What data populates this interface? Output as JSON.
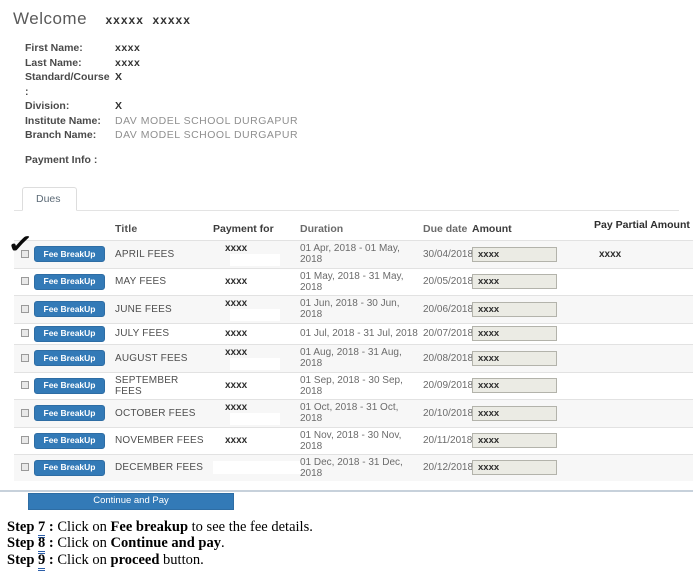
{
  "header": {
    "welcome_label": "Welcome",
    "student_name": "xxxxx  xxxxx"
  },
  "profile": {
    "fields": [
      {
        "label": "First Name:",
        "value": "xxxx"
      },
      {
        "label": "Last Name:",
        "value": "xxxx"
      },
      {
        "label": "Standard/Course :",
        "value": "X"
      },
      {
        "label": "Division:",
        "value": "X"
      },
      {
        "label": "Institute Name:",
        "value": "DAV MODEL SCHOOL DURGAPUR"
      },
      {
        "label": "Branch Name:",
        "value": "DAV MODEL SCHOOL DURGAPUR"
      }
    ]
  },
  "payment_info_label": "Payment Info :",
  "tabs": {
    "dues_label": "Dues"
  },
  "dues_table": {
    "fee_breakup_label": "Fee BreakUp",
    "headers": {
      "title": "Title",
      "payment_for": "Payment for",
      "duration": "Duration",
      "due_date": "Due date",
      "amount": "Amount",
      "pay_partial": "Pay Partial Amount"
    },
    "rows": [
      {
        "title": "APRIL FEES",
        "payment_for": "xxxx",
        "duration": "01 Apr, 2018 - 01 May, 2018",
        "due_date": "30/04/2018",
        "amount": "xxxx",
        "pay_partial": "xxxx",
        "checked": true
      },
      {
        "title": "MAY FEES",
        "payment_for": "xxxx",
        "duration": "01 May, 2018 - 31 May, 2018",
        "due_date": "20/05/2018",
        "amount": "xxxx",
        "pay_partial": "",
        "checked": false
      },
      {
        "title": "JUNE FEES",
        "payment_for": "xxxx",
        "duration": "01 Jun, 2018 - 30 Jun, 2018",
        "due_date": "20/06/2018",
        "amount": "xxxx",
        "pay_partial": "",
        "checked": false
      },
      {
        "title": "JULY FEES",
        "payment_for": "xxxx",
        "duration": "01 Jul, 2018 - 31 Jul, 2018",
        "due_date": "20/07/2018",
        "amount": "xxxx",
        "pay_partial": "",
        "checked": false
      },
      {
        "title": "AUGUST FEES",
        "payment_for": "xxxx",
        "duration": "01 Aug, 2018 - 31 Aug, 2018",
        "due_date": "20/08/2018",
        "amount": "xxxx",
        "pay_partial": "",
        "checked": false
      },
      {
        "title": "SEPTEMBER FEES",
        "payment_for": "xxxx",
        "duration": "01 Sep, 2018 - 30 Sep, 2018",
        "due_date": "20/09/2018",
        "amount": "xxxx",
        "pay_partial": "",
        "checked": false
      },
      {
        "title": "OCTOBER FEES",
        "payment_for": "xxxx",
        "duration": "01 Oct, 2018 - 31 Oct, 2018",
        "due_date": "20/10/2018",
        "amount": "xxxx",
        "pay_partial": "",
        "checked": false
      },
      {
        "title": "NOVEMBER FEES",
        "payment_for": "xxxx",
        "duration": "01 Nov, 2018 - 30 Nov, 2018",
        "due_date": "20/11/2018",
        "amount": "xxxx",
        "pay_partial": "",
        "checked": false
      },
      {
        "title": "DECEMBER FEES",
        "payment_for": "",
        "duration": "01 Dec, 2018 - 31 Dec, 2018",
        "due_date": "20/12/2018",
        "amount": "xxxx",
        "pay_partial": "",
        "checked": false
      }
    ]
  },
  "continue_button_label": "Continue and Pay",
  "steps": [
    {
      "label": "Step ",
      "number": "7",
      "colon": " : ",
      "pre": "Click on ",
      "bold": "Fee breakup",
      "post": " to see the fee details."
    },
    {
      "label": "Step ",
      "number": "8",
      "colon": " : ",
      "pre": "Click on ",
      "bold": "Continue and pay",
      "post": "."
    },
    {
      "label": "Step ",
      "number": "9",
      "colon": " : ",
      "pre": "Click on ",
      "bold": "proceed",
      "post": " button."
    }
  ],
  "colors": {
    "primary_blue": "#337ab7",
    "stripe": "#f7f7f7",
    "input_bg": "#ebebe4"
  }
}
